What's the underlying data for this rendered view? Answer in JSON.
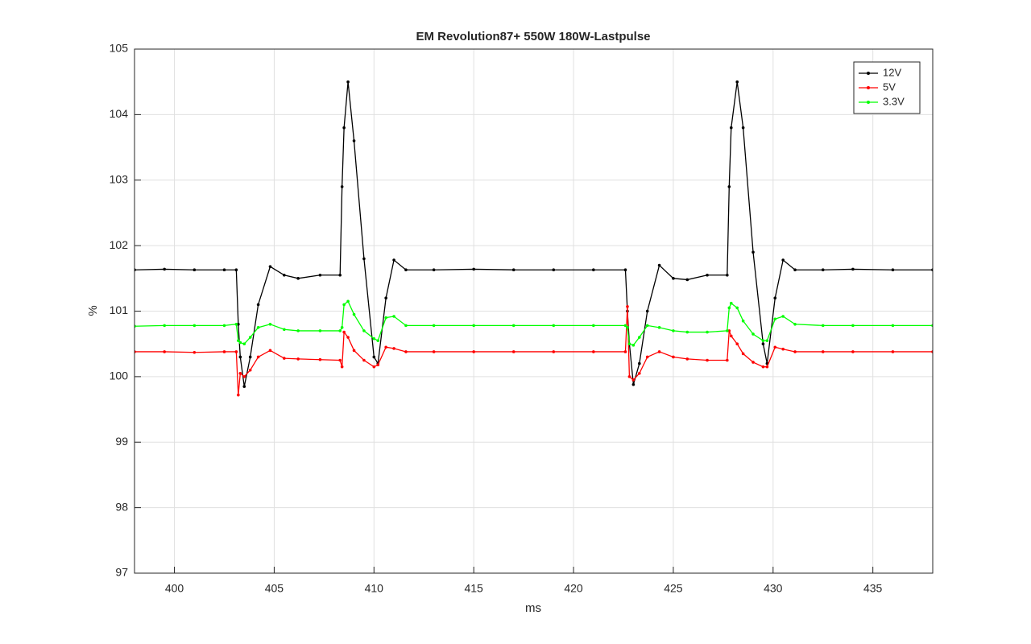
{
  "chart_data": {
    "type": "line",
    "title": "EM Revolution87+ 550W 180W-Lastpulse",
    "xlabel": "ms",
    "ylabel": "%",
    "x": [
      398,
      399.5,
      401,
      402.5,
      403.1,
      403.2,
      403.3,
      403.5,
      403.8,
      404.2,
      404.8,
      405.5,
      406.2,
      407.3,
      408.3,
      408.4,
      408.5,
      408.7,
      409,
      409.5,
      410,
      410.2,
      410.6,
      411,
      411.6,
      413,
      415,
      417,
      419,
      421,
      422.6,
      422.7,
      422.8,
      423,
      423.3,
      423.7,
      424.3,
      425,
      425.7,
      426.7,
      427.7,
      427.8,
      427.9,
      428.2,
      428.5,
      429,
      429.5,
      429.7,
      430.1,
      430.5,
      431.1,
      432.5,
      434,
      436,
      438
    ],
    "series": [
      {
        "name": "12V",
        "color": "#000000",
        "values": [
          101.63,
          101.64,
          101.63,
          101.63,
          101.63,
          100.8,
          100.3,
          99.85,
          100.3,
          101.1,
          101.68,
          101.55,
          101.5,
          101.55,
          101.55,
          102.9,
          103.8,
          104.5,
          103.6,
          101.8,
          100.3,
          100.2,
          101.2,
          101.78,
          101.63,
          101.63,
          101.64,
          101.63,
          101.63,
          101.63,
          101.63,
          101.0,
          100.5,
          99.88,
          100.2,
          101.0,
          101.7,
          101.5,
          101.48,
          101.55,
          101.55,
          102.9,
          103.8,
          104.5,
          103.8,
          101.9,
          100.5,
          100.2,
          101.2,
          101.78,
          101.63,
          101.63,
          101.64,
          101.63,
          101.63
        ]
      },
      {
        "name": "5V",
        "color": "#ff0000",
        "values": [
          100.38,
          100.38,
          100.37,
          100.38,
          100.38,
          99.72,
          100.05,
          100.0,
          100.1,
          100.3,
          100.4,
          100.28,
          100.27,
          100.26,
          100.25,
          100.15,
          100.68,
          100.6,
          100.4,
          100.25,
          100.15,
          100.18,
          100.45,
          100.43,
          100.38,
          100.38,
          100.38,
          100.38,
          100.38,
          100.38,
          100.38,
          101.07,
          100.0,
          99.95,
          100.05,
          100.3,
          100.38,
          100.3,
          100.27,
          100.25,
          100.25,
          100.7,
          100.62,
          100.5,
          100.35,
          100.22,
          100.15,
          100.15,
          100.45,
          100.42,
          100.38,
          100.38,
          100.38,
          100.38,
          100.38
        ]
      },
      {
        "name": "3.3V",
        "color": "#00ff00",
        "values": [
          100.77,
          100.78,
          100.78,
          100.78,
          100.8,
          100.55,
          100.52,
          100.5,
          100.6,
          100.75,
          100.8,
          100.72,
          100.7,
          100.7,
          100.7,
          100.75,
          101.1,
          101.15,
          100.95,
          100.7,
          100.58,
          100.55,
          100.9,
          100.92,
          100.78,
          100.78,
          100.78,
          100.78,
          100.78,
          100.78,
          100.78,
          100.75,
          100.5,
          100.48,
          100.6,
          100.78,
          100.75,
          100.7,
          100.68,
          100.68,
          100.7,
          101.05,
          101.12,
          101.05,
          100.85,
          100.65,
          100.55,
          100.55,
          100.88,
          100.92,
          100.8,
          100.78,
          100.78,
          100.78,
          100.78
        ]
      }
    ],
    "xlim": [
      398,
      438
    ],
    "ylim": [
      97,
      105
    ],
    "xticks": [
      400,
      405,
      410,
      415,
      420,
      425,
      430,
      435
    ],
    "yticks": [
      97,
      98,
      99,
      100,
      101,
      102,
      103,
      104,
      105
    ],
    "grid": true,
    "legend": "northeast"
  }
}
